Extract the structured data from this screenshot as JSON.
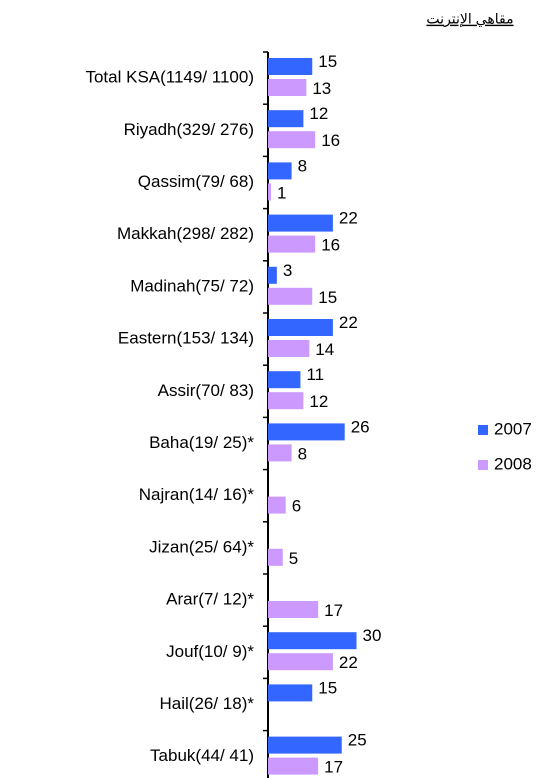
{
  "chart_data": {
    "type": "bar",
    "orientation": "horizontal",
    "title": "مقاهي الإنترنت",
    "categories": [
      "Total KSA(1149/ 1100)",
      "Riyadh(329/ 276)",
      "Qassim(79/ 68)",
      "Makkah(298/ 282)",
      "Madinah(75/ 72)",
      "Eastern(153/ 134)",
      "Assir(70/ 83)",
      "Baha(19/ 25)*",
      "Najran(14/ 16)*",
      "Jizan(25/ 64)*",
      "Arar(7/ 12)*",
      "Jouf(10/ 9)*",
      "Hail(26/ 18)*",
      "Tabuk(44/ 41)"
    ],
    "series": [
      {
        "name": "2007",
        "color": "#3366ff",
        "values": [
          15,
          12,
          8,
          22,
          3,
          22,
          11,
          26,
          null,
          null,
          null,
          30,
          15,
          25
        ]
      },
      {
        "name": "2008",
        "color": "#cc99ff",
        "values": [
          13,
          16,
          1,
          16,
          15,
          14,
          12,
          8,
          6,
          5,
          17,
          22,
          null,
          17
        ]
      }
    ],
    "xlim": [
      0,
      60
    ],
    "legend": "right"
  }
}
